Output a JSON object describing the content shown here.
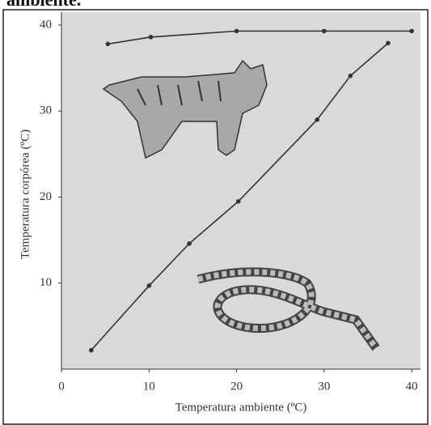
{
  "caption_fragment": "ambiente.",
  "chart_data": {
    "type": "line",
    "xlabel": "Temperatura ambiente (ºC)",
    "ylabel": "Temperatura corpórea (ºC)",
    "xlim": [
      0,
      41
    ],
    "ylim": [
      0,
      41.5
    ],
    "xticks": [
      0,
      10,
      20,
      30,
      40
    ],
    "yticks": [
      10,
      20,
      30,
      40
    ],
    "series": [
      {
        "color": "#333333",
        "x": [
          5.3,
          10.2,
          20,
          30,
          40
        ],
        "values": [
          37.8,
          38.6,
          39.3,
          39.3,
          39.3
        ]
      },
      {
        "color": "#333333",
        "x": [
          3.4,
          10,
          14.6,
          20.2,
          29.2,
          33,
          37.3
        ],
        "values": [
          2.2,
          9.7,
          14.6,
          19.5,
          29.0,
          34.1,
          37.9
        ]
      }
    ]
  }
}
